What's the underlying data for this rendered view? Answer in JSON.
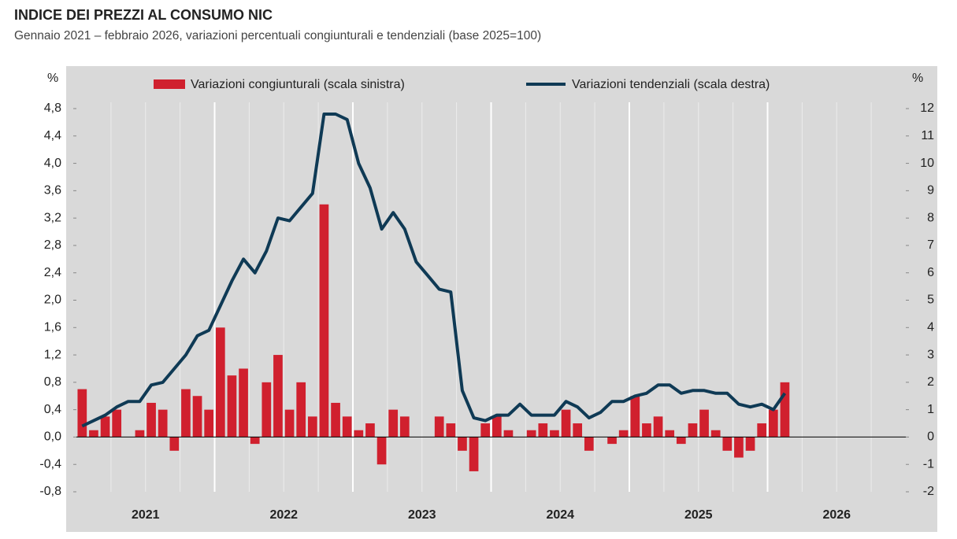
{
  "chart_data": {
    "type": "bar_line",
    "title": "INDICE DEI PREZZI AL CONSUMO NIC",
    "subtitle": "Gennaio 2021 – febbraio 2026, variazioni percentuali congiunturali e tendenziali (base 2025=100)",
    "y_label": "%",
    "y2_label": "%",
    "years": [
      "2021",
      "2022",
      "2023",
      "2024",
      "2025",
      "2026"
    ],
    "categories": [
      null,
      null,
      null,
      null,
      null,
      null,
      null,
      null,
      null,
      null,
      null,
      null,
      null,
      null,
      null,
      null,
      null,
      null,
      null,
      null,
      null,
      null,
      null,
      null,
      null,
      null,
      null,
      null,
      null,
      null,
      null,
      null,
      null,
      null,
      null,
      null,
      null,
      null,
      null,
      null,
      null,
      null,
      null,
      null,
      null,
      null,
      null,
      null,
      null,
      null,
      null,
      null,
      null,
      null,
      null,
      null,
      null,
      null,
      null,
      null,
      null,
      null,
      null,
      null,
      null,
      null,
      null,
      null,
      null,
      null,
      null,
      null
    ],
    "series": [
      {
        "name": "Variazioni congiunturali (scala sinistra)",
        "color": "#d0202e",
        "kind": "bar",
        "axis": "y",
        "values": [
          0.7,
          0.1,
          0.3,
          0.4,
          0.0,
          0.1,
          0.5,
          0.4,
          -0.2,
          0.7,
          0.6,
          0.4,
          1.6,
          0.9,
          1.0,
          -0.1,
          0.8,
          1.2,
          0.4,
          0.8,
          0.3,
          3.4,
          0.5,
          0.3,
          0.1,
          0.2,
          -0.4,
          0.4,
          0.3,
          0.0,
          0.0,
          0.3,
          0.2,
          -0.2,
          -0.5,
          0.2,
          0.3,
          0.1,
          0.0,
          0.1,
          0.2,
          0.1,
          0.4,
          0.2,
          -0.2,
          0.0,
          -0.1,
          0.1,
          0.6,
          0.2,
          0.3,
          0.1,
          -0.1,
          0.2,
          0.4,
          0.1,
          -0.2,
          -0.3,
          -0.2,
          0.2,
          0.4,
          0.8,
          null,
          null,
          null,
          null,
          null,
          null,
          null,
          null,
          null,
          null
        ]
      },
      {
        "name": "Variazioni tendenziali (scala destra)",
        "color": "#0f3a55",
        "kind": "line",
        "axis": "y2",
        "values": [
          0.4,
          0.6,
          0.8,
          1.1,
          1.3,
          1.3,
          1.9,
          2.0,
          2.5,
          3.0,
          3.7,
          3.9,
          4.8,
          5.7,
          6.5,
          6.0,
          6.8,
          8.0,
          7.9,
          8.4,
          8.9,
          11.8,
          11.8,
          11.6,
          10.0,
          9.1,
          7.6,
          8.2,
          7.6,
          6.4,
          5.9,
          5.4,
          5.3,
          1.7,
          0.7,
          0.6,
          0.8,
          0.8,
          1.2,
          0.8,
          0.8,
          0.8,
          1.3,
          1.1,
          0.7,
          0.9,
          1.3,
          1.3,
          1.5,
          1.6,
          1.9,
          1.9,
          1.6,
          1.7,
          1.7,
          1.6,
          1.6,
          1.2,
          1.1,
          1.2,
          1.0,
          1.6,
          null,
          null,
          null,
          null,
          null,
          null,
          null,
          null,
          null,
          null
        ]
      }
    ],
    "ylim": [
      -0.8,
      4.8
    ],
    "yticks": [
      {
        "value": -0.8,
        "label": "-0,8"
      },
      {
        "value": -0.4,
        "label": "-0,4"
      },
      {
        "value": 0,
        "label": "0,0"
      },
      {
        "value": 0.4,
        "label": "0,4"
      },
      {
        "value": 0.8,
        "label": "0,8"
      },
      {
        "value": 1.2,
        "label": "1,2"
      },
      {
        "value": 1.6,
        "label": "1,6"
      },
      {
        "value": 2.0,
        "label": "2,0"
      },
      {
        "value": 2.4,
        "label": "2,4"
      },
      {
        "value": 2.8,
        "label": "2,8"
      },
      {
        "value": 3.2,
        "label": "3,2"
      },
      {
        "value": 3.6,
        "label": "3,6"
      },
      {
        "value": 4.0,
        "label": "4,0"
      },
      {
        "value": 4.4,
        "label": "4,4"
      },
      {
        "value": 4.8,
        "label": "4,8"
      }
    ],
    "y2lim": [
      -2,
      12
    ],
    "y2ticks": [
      -2,
      -1,
      0,
      1,
      2,
      3,
      4,
      5,
      6,
      7,
      8,
      9,
      10,
      11,
      12
    ]
  }
}
